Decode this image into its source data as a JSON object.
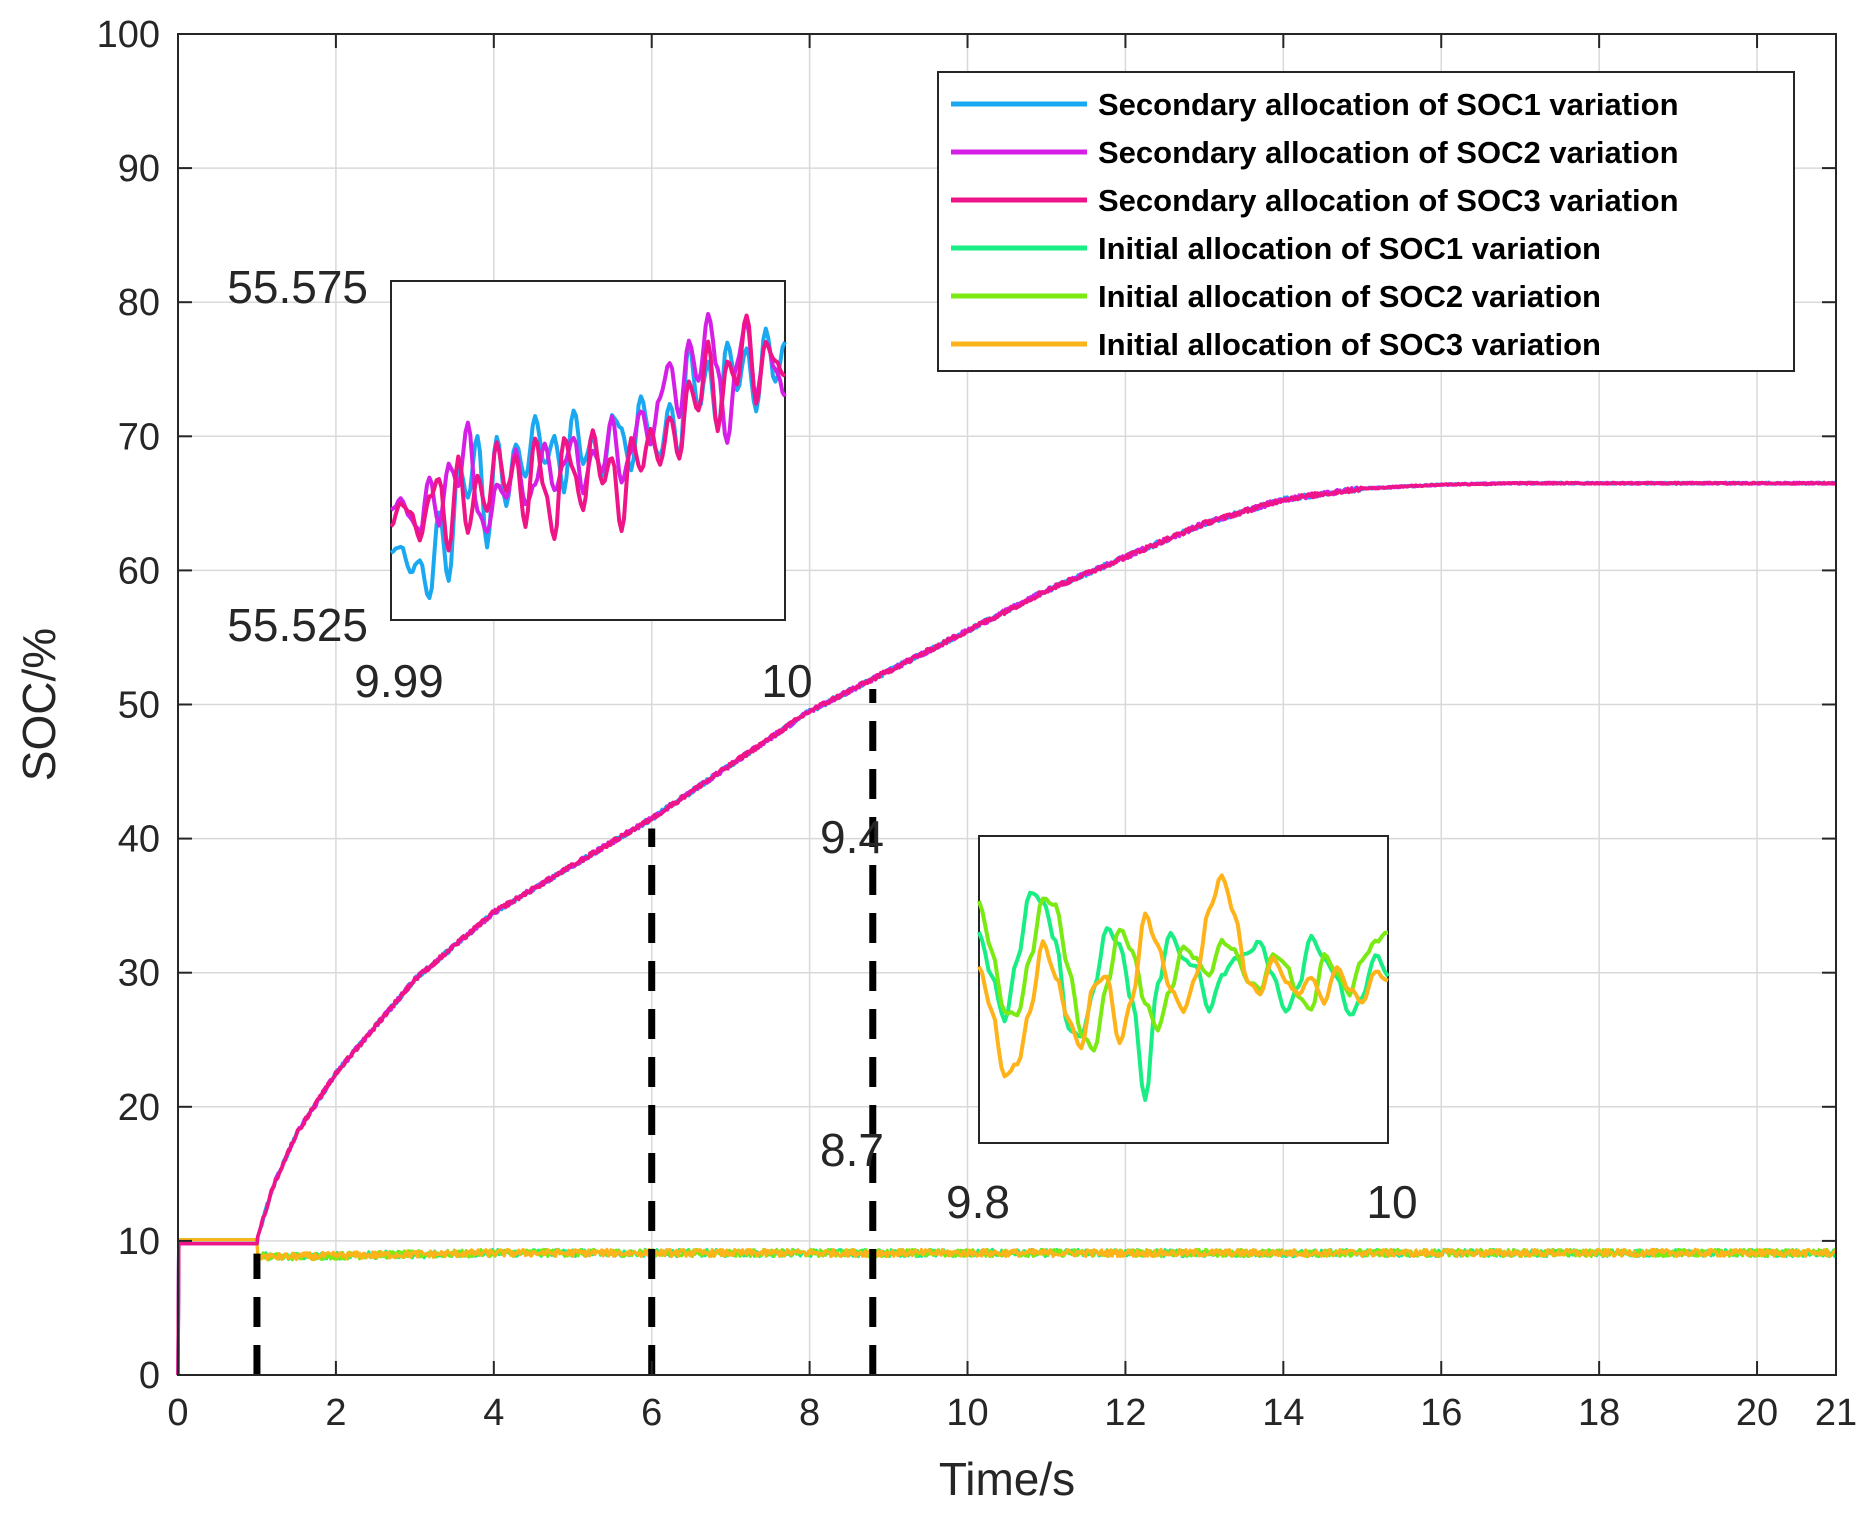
{
  "chart_data": {
    "type": "line",
    "xlabel": "Time/s",
    "ylabel": "SOC/%",
    "xlim": [
      0,
      21
    ],
    "ylim": [
      0,
      100
    ],
    "xticks": [
      0,
      2,
      4,
      6,
      8,
      10,
      12,
      14,
      16,
      18,
      20,
      21
    ],
    "yticks": [
      0,
      10,
      20,
      30,
      40,
      50,
      60,
      70,
      80,
      90,
      100
    ],
    "grid": true,
    "legend_position": "top-right",
    "markers": [
      1,
      6,
      8.8
    ],
    "series": [
      {
        "name": "Secondary allocation of SOC1 variation",
        "color": "#1aa9f0",
        "kind": "secondary",
        "final": 66.5
      },
      {
        "name": "Secondary allocation of SOC2 variation",
        "color": "#d61fe6",
        "kind": "secondary",
        "final": 66.5
      },
      {
        "name": "Secondary allocation of SOC3 variation",
        "color": "#ef1487",
        "kind": "secondary",
        "final": 66.5
      },
      {
        "name": "Initial allocation of SOC1 variation",
        "color": "#19ee84",
        "kind": "initial",
        "final": 9.1
      },
      {
        "name": "Initial allocation of SOC2 variation",
        "color": "#7aea12",
        "kind": "initial",
        "final": 9.1
      },
      {
        "name": "Initial allocation of SOC3 variation",
        "color": "#ffb31a",
        "kind": "initial",
        "final": 9.1
      }
    ],
    "main_curve_points": {
      "x": [
        0,
        0.01,
        1.0,
        1.01,
        1.2,
        1.5,
        2,
        3,
        4,
        5,
        6,
        7,
        8,
        9,
        10,
        11,
        12,
        13,
        14,
        15,
        16,
        17,
        18,
        19,
        20,
        21
      ],
      "y": [
        0,
        9.8,
        9.8,
        10.3,
        14,
        18,
        22.5,
        29.5,
        34.5,
        38,
        41.5,
        45.5,
        49.5,
        52.5,
        55.5,
        58.5,
        61,
        63.5,
        65.3,
        66.1,
        66.4,
        66.5,
        66.5,
        66.5,
        66.5,
        66.5
      ]
    },
    "low_curve_points": {
      "x": [
        0,
        0.01,
        1.0,
        1.01,
        1.2,
        2,
        4,
        6,
        8,
        10,
        12,
        14,
        16,
        18,
        20,
        21
      ],
      "y": [
        0,
        10.1,
        10.1,
        8.9,
        8.8,
        8.9,
        9.1,
        9.1,
        9.1,
        9.1,
        9.1,
        9.1,
        9.1,
        9.1,
        9.1,
        9.1
      ]
    },
    "insets": [
      {
        "name": "secondary-zoom",
        "xlim": [
          9.99,
          10
        ],
        "ylim": [
          55.525,
          55.575
        ],
        "x_labels": [
          "9.99",
          "10"
        ],
        "y_labels": [
          "55.575",
          "55.525"
        ],
        "series": [
          {
            "color": "#1aa9f0",
            "y": [
              55.535,
              55.536,
              55.532,
              55.534,
              55.528,
              55.541,
              55.531,
              55.548,
              55.543,
              55.552,
              55.536,
              55.552,
              55.542,
              55.551,
              55.546,
              55.555,
              55.548,
              55.552,
              55.544,
              55.556,
              55.548,
              55.552,
              55.546,
              55.555,
              55.553,
              55.547,
              55.558,
              55.552,
              55.549,
              55.557,
              55.549,
              55.566,
              55.556,
              55.563,
              55.553,
              55.566,
              55.559,
              55.565,
              55.556,
              55.568,
              55.56,
              55.566
            ]
          },
          {
            "color": "#d61fe6",
            "y": [
              55.541,
              55.543,
              55.54,
              55.538,
              55.546,
              55.539,
              55.548,
              55.545,
              55.554,
              55.541,
              55.538,
              55.545,
              55.543,
              55.55,
              55.542,
              55.545,
              55.551,
              55.544,
              55.548,
              55.552,
              55.544,
              55.55,
              55.547,
              55.555,
              55.545,
              55.55,
              55.556,
              55.551,
              55.558,
              55.563,
              55.555,
              55.566,
              55.56,
              55.57,
              55.562,
              55.551,
              55.563,
              55.569,
              55.558,
              55.566,
              55.562,
              55.558
            ]
          },
          {
            "color": "#ef1487",
            "y": [
              55.539,
              55.542,
              55.541,
              55.537,
              55.543,
              55.546,
              55.535,
              55.549,
              55.538,
              55.546,
              55.541,
              55.551,
              55.544,
              55.549,
              55.539,
              55.552,
              55.544,
              55.537,
              55.552,
              55.547,
              55.541,
              55.553,
              55.545,
              55.549,
              55.538,
              55.552,
              55.547,
              55.553,
              55.548,
              55.555,
              55.549,
              55.56,
              55.556,
              55.566,
              55.553,
              55.563,
              55.56,
              55.57,
              55.557,
              55.566,
              55.563,
              55.561
            ]
          }
        ]
      },
      {
        "name": "initial-zoom",
        "xlim": [
          9.8,
          10
        ],
        "ylim": [
          8.7,
          9.4
        ],
        "x_labels": [
          "9.8",
          "10"
        ],
        "y_labels": [
          "9.4",
          "8.7"
        ],
        "series": [
          {
            "color": "#19ee84",
            "y": [
              9.18,
              9.08,
              8.98,
              9.12,
              9.27,
              9.25,
              9.16,
              8.96,
              8.94,
              9.05,
              9.19,
              9.15,
              9.02,
              8.8,
              9.06,
              9.18,
              9.12,
              9.1,
              9.0,
              9.08,
              9.12,
              9.13,
              9.16,
              9.08,
              9.0,
              9.06,
              9.17,
              9.12,
              9.08,
              8.99,
              9.03,
              9.13,
              9.08
            ]
          },
          {
            "color": "#7aea12",
            "y": [
              9.25,
              9.14,
              9.0,
              8.99,
              9.12,
              9.26,
              9.24,
              9.1,
              8.95,
              8.91,
              9.06,
              9.19,
              9.14,
              9.02,
              8.96,
              9.05,
              9.15,
              9.12,
              9.08,
              9.16,
              9.14,
              9.07,
              9.05,
              9.13,
              9.11,
              9.03,
              9.0,
              9.13,
              9.09,
              9.04,
              9.12,
              9.16,
              9.18
            ]
          },
          {
            "color": "#ffb31a",
            "y": [
              9.1,
              9.0,
              8.85,
              8.88,
              9.0,
              9.16,
              9.08,
              8.98,
              8.92,
              9.06,
              9.08,
              8.93,
              9.03,
              9.22,
              9.15,
              9.05,
              9.0,
              9.08,
              9.23,
              9.31,
              9.22,
              9.07,
              9.04,
              9.12,
              9.07,
              9.04,
              9.08,
              9.02,
              9.1,
              9.05,
              9.02,
              9.09,
              9.07
            ]
          }
        ]
      }
    ]
  }
}
